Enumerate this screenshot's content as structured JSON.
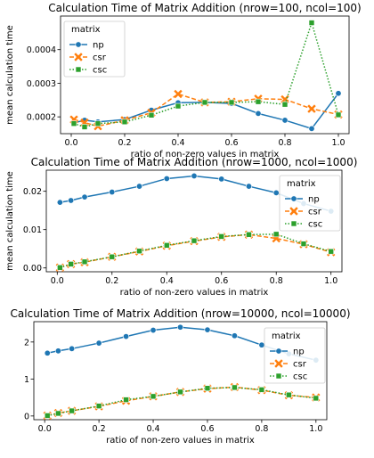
{
  "chart_data": [
    {
      "type": "line",
      "title": "Calculation Time of Matrix Addition (nrow=100, ncol=100)",
      "xlabel": "ratio of non-zero values in matrix",
      "ylabel": "mean calculation time",
      "x": [
        0.01,
        0.05,
        0.1,
        0.2,
        0.3,
        0.4,
        0.5,
        0.6,
        0.7,
        0.8,
        0.9,
        1.0
      ],
      "xlim": [
        -0.04,
        1.04
      ],
      "ylim": [
        0.00015,
        0.0005
      ],
      "xticks": [
        "0.0",
        "0.2",
        "0.4",
        "0.6",
        "0.8",
        "1.0"
      ],
      "yticks": [
        "0.0002",
        "0.0003",
        "0.0004"
      ],
      "grid": false,
      "legend_title": "matrix",
      "legend_position": "top-left",
      "series": [
        {
          "name": "np",
          "color": "#1f77b4",
          "marker": "circle",
          "dash": "solid",
          "values": [
            0.000182,
            0.00019,
            0.000185,
            0.000192,
            0.00022,
            0.000242,
            0.000243,
            0.00024,
            0.00021,
            0.00019,
            0.000165,
            0.00027
          ]
        },
        {
          "name": "csr",
          "color": "#ff7f0e",
          "marker": "x",
          "dash": "dashed",
          "values": [
            0.000192,
            0.000183,
            0.000172,
            0.00019,
            0.000212,
            0.000268,
            0.000243,
            0.000245,
            0.000254,
            0.000252,
            0.000224,
            0.000207
          ]
        },
        {
          "name": "csc",
          "color": "#2ca02c",
          "marker": "square",
          "dash": "dotted",
          "values": [
            0.00018,
            0.00017,
            0.00018,
            0.000185,
            0.000205,
            0.000232,
            0.000243,
            0.000243,
            0.000245,
            0.000237,
            0.00048,
            0.000206
          ]
        }
      ]
    },
    {
      "type": "line",
      "title": "Calculation Time of Matrix Addition (nrow=1000, ncol=1000)",
      "xlabel": "ratio of non-zero values in matrix",
      "ylabel": "mean calculation time",
      "x": [
        0.01,
        0.05,
        0.1,
        0.2,
        0.3,
        0.4,
        0.5,
        0.6,
        0.7,
        0.8,
        0.9,
        1.0
      ],
      "xlim": [
        -0.04,
        1.04
      ],
      "ylim": [
        -0.001,
        0.0255
      ],
      "xticks": [
        "0.0",
        "0.2",
        "0.4",
        "0.6",
        "0.8",
        "1.0"
      ],
      "yticks": [
        "0.00",
        "0.01",
        "0.02"
      ],
      "grid": false,
      "legend_title": "matrix",
      "legend_position": "top-right",
      "series": [
        {
          "name": "np",
          "color": "#1f77b4",
          "marker": "circle",
          "dash": "solid",
          "values": [
            0.0171,
            0.0176,
            0.0185,
            0.0198,
            0.0213,
            0.0233,
            0.024,
            0.0232,
            0.0213,
            0.0196,
            0.0168,
            0.0148
          ]
        },
        {
          "name": "csr",
          "color": "#ff7f0e",
          "marker": "x",
          "dash": "dashed",
          "values": [
            0.0001,
            0.001,
            0.0015,
            0.0029,
            0.0043,
            0.0058,
            0.007,
            0.0081,
            0.0087,
            0.0077,
            0.0062,
            0.0041
          ]
        },
        {
          "name": "csc",
          "color": "#2ca02c",
          "marker": "square",
          "dash": "dotted",
          "values": [
            0.0001,
            0.001,
            0.0016,
            0.0029,
            0.0044,
            0.0059,
            0.0071,
            0.0082,
            0.0087,
            0.0088,
            0.0063,
            0.0043
          ]
        }
      ]
    },
    {
      "type": "line",
      "title": "Calculation Time of Matrix Addition (nrow=10000, ncol=10000)",
      "xlabel": "ratio of non-zero values in matrix",
      "ylabel": "mean calculation time",
      "x": [
        0.01,
        0.05,
        0.1,
        0.2,
        0.3,
        0.4,
        0.5,
        0.6,
        0.7,
        0.8,
        0.9,
        1.0
      ],
      "xlim": [
        -0.04,
        1.04
      ],
      "ylim": [
        -0.1,
        2.55
      ],
      "xticks": [
        "0.0",
        "0.2",
        "0.4",
        "0.6",
        "0.8",
        "1.0"
      ],
      "yticks": [
        "0",
        "1",
        "2"
      ],
      "grid": false,
      "legend_title": "matrix",
      "legend_position": "right",
      "series": [
        {
          "name": "np",
          "color": "#1f77b4",
          "marker": "circle",
          "dash": "solid",
          "values": [
            1.7,
            1.76,
            1.82,
            1.97,
            2.15,
            2.32,
            2.4,
            2.33,
            2.17,
            1.92,
            1.68,
            1.51
          ]
        },
        {
          "name": "csr",
          "color": "#ff7f0e",
          "marker": "x",
          "dash": "dashed",
          "values": [
            0.01,
            0.08,
            0.14,
            0.26,
            0.41,
            0.53,
            0.65,
            0.74,
            0.78,
            0.7,
            0.56,
            0.5
          ]
        },
        {
          "name": "csc",
          "color": "#2ca02c",
          "marker": "square",
          "dash": "dotted",
          "values": [
            0.01,
            0.07,
            0.14,
            0.27,
            0.44,
            0.53,
            0.65,
            0.75,
            0.77,
            0.71,
            0.57,
            0.48
          ]
        }
      ]
    }
  ]
}
